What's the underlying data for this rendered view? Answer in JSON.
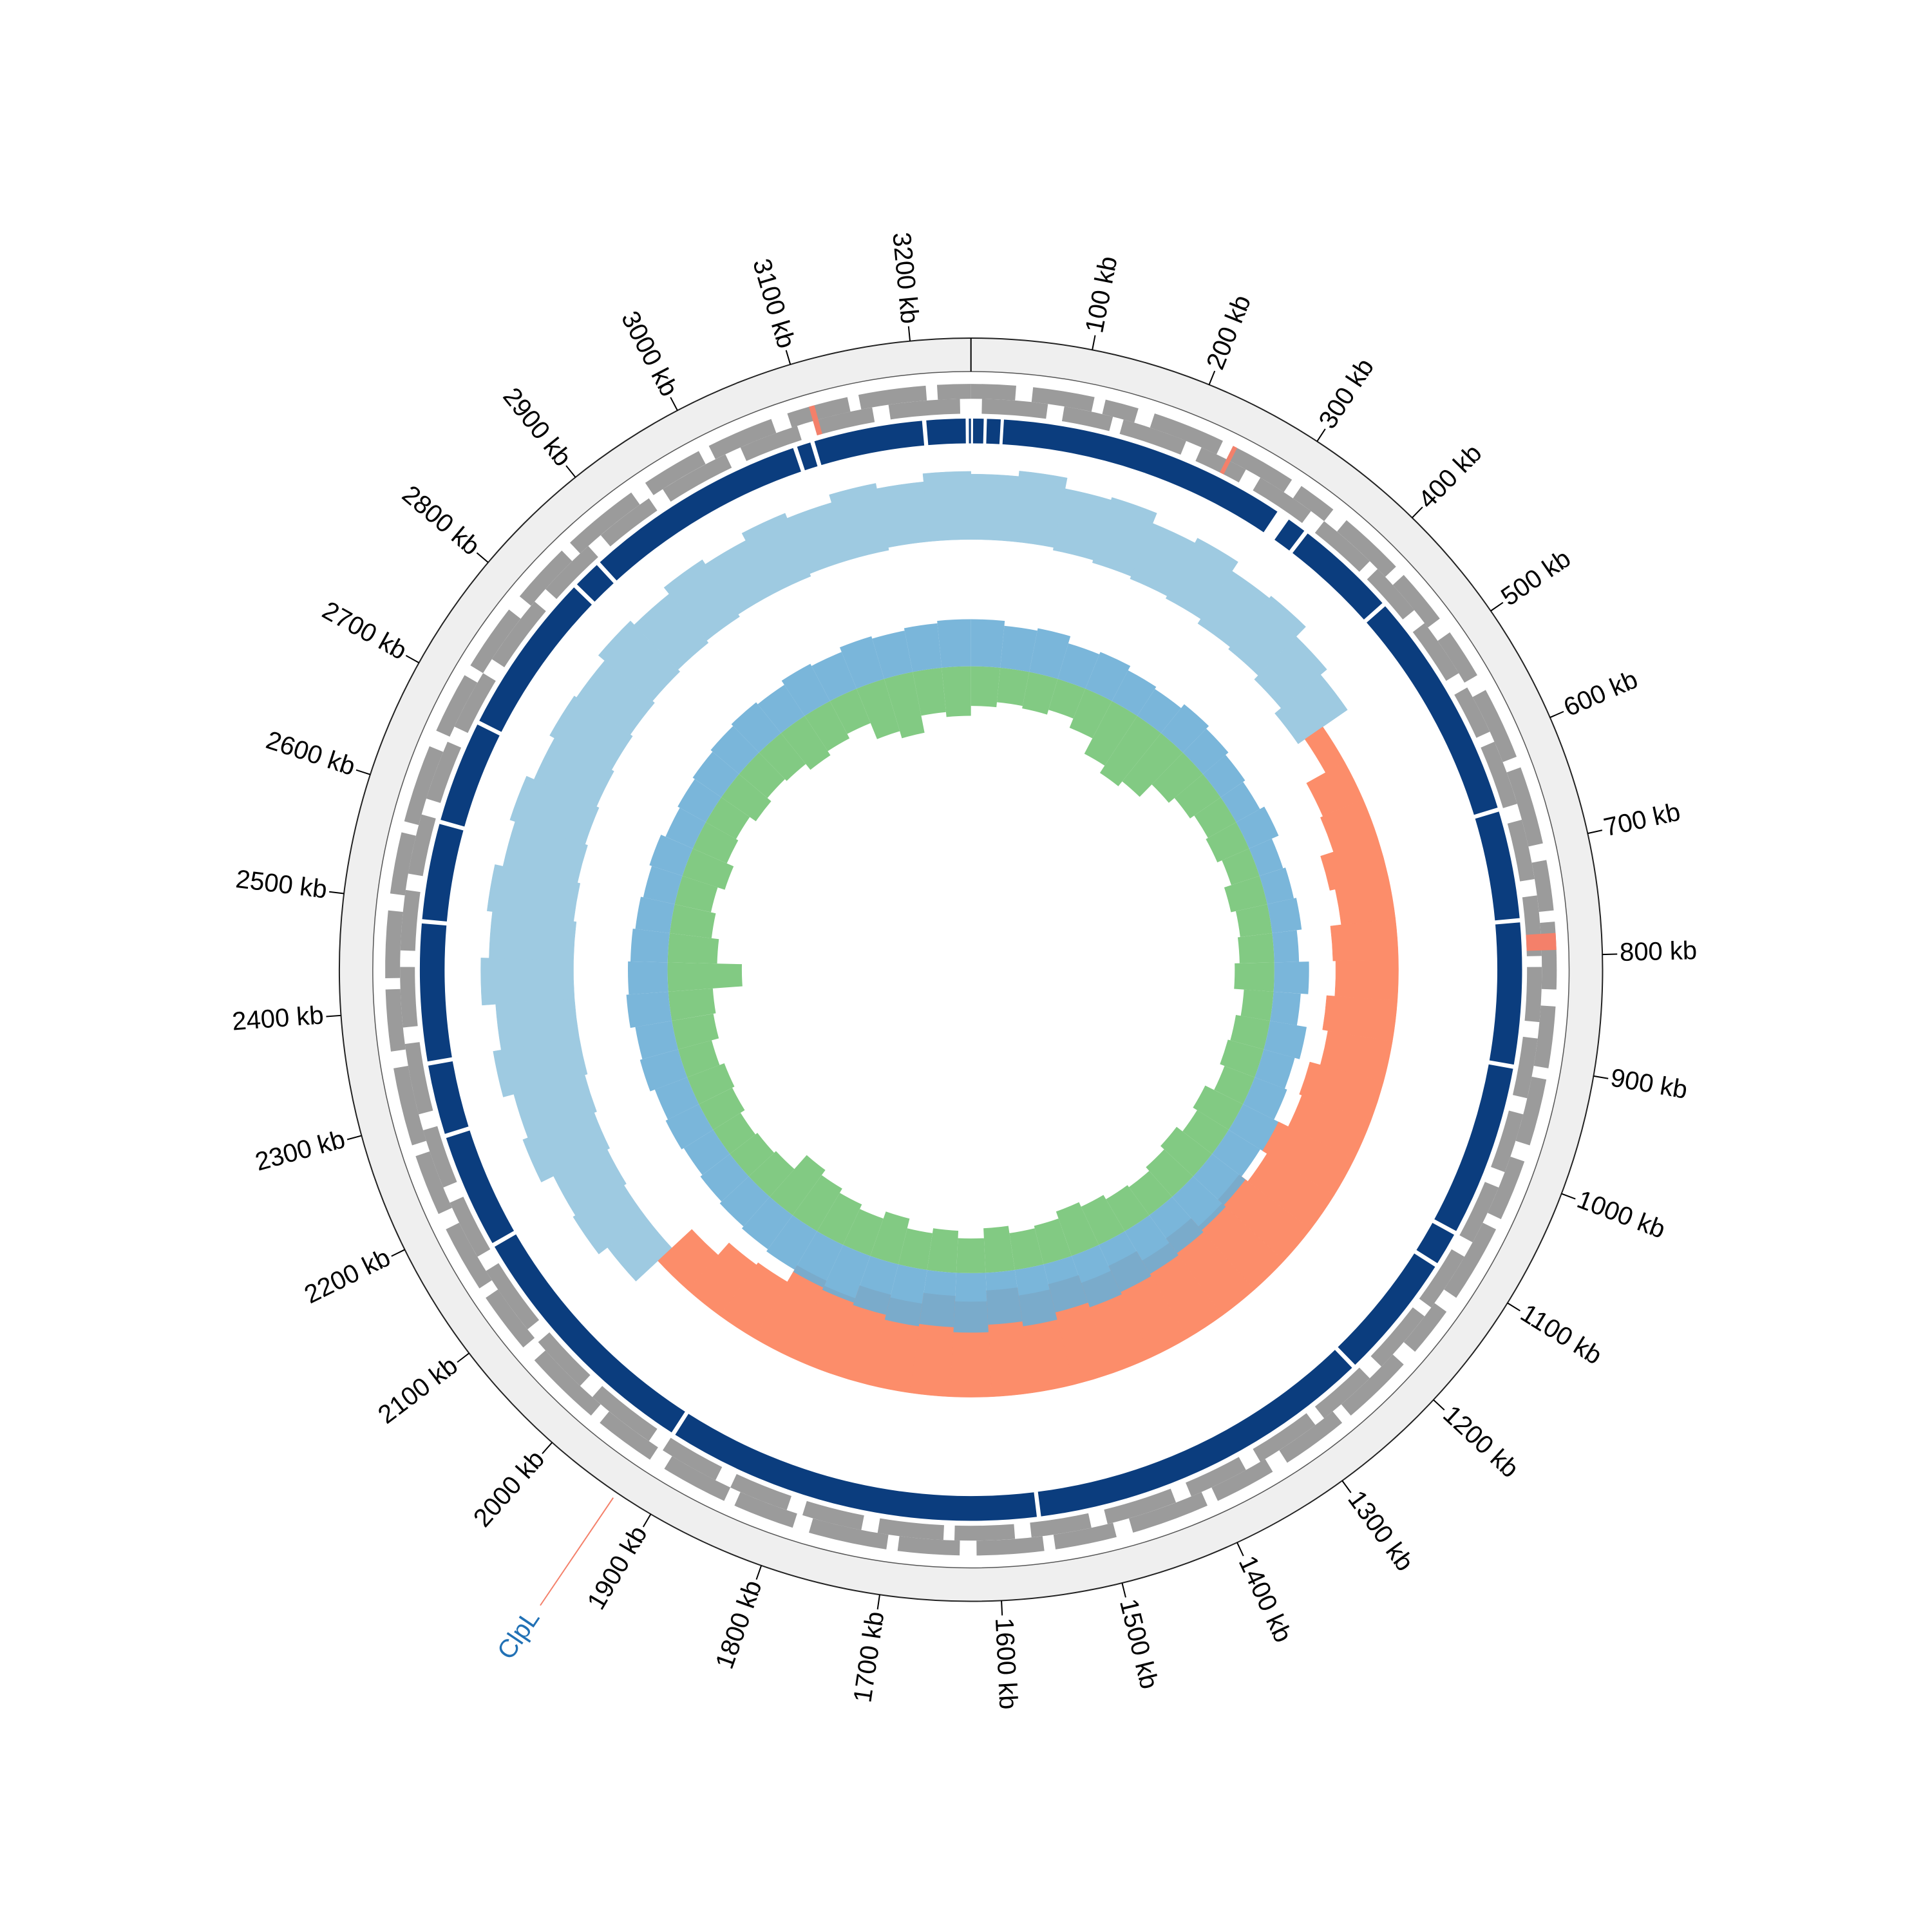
{
  "chart_data": {
    "type": "circular-genome",
    "xlim": [
      0,
      3250
    ],
    "xticks": [
      {
        "value": 100,
        "label": "100 kb"
      },
      {
        "value": 200,
        "label": "200 kb"
      },
      {
        "value": 300,
        "label": "300 kb"
      },
      {
        "value": 400,
        "label": "400 kb"
      },
      {
        "value": 500,
        "label": "500 kb"
      },
      {
        "value": 600,
        "label": "600 kb"
      },
      {
        "value": 700,
        "label": "700 kb"
      },
      {
        "value": 800,
        "label": "800 kb"
      },
      {
        "value": 900,
        "label": "900 kb"
      },
      {
        "value": 1000,
        "label": "1000 kb"
      },
      {
        "value": 1100,
        "label": "1100 kb"
      },
      {
        "value": 1200,
        "label": "1200 kb"
      },
      {
        "value": 1300,
        "label": "1300 kb"
      },
      {
        "value": 1400,
        "label": "1400 kb"
      },
      {
        "value": 1500,
        "label": "1500 kb"
      },
      {
        "value": 1600,
        "label": "1600 kb"
      },
      {
        "value": 1700,
        "label": "1700 kb"
      },
      {
        "value": 1800,
        "label": "1800 kb"
      },
      {
        "value": 1900,
        "label": "1900 kb"
      },
      {
        "value": 2000,
        "label": "2000 kb"
      },
      {
        "value": 2100,
        "label": "2100 kb"
      },
      {
        "value": 2200,
        "label": "2200 kb"
      },
      {
        "value": 2300,
        "label": "2300 kb"
      },
      {
        "value": 2400,
        "label": "2400 kb"
      },
      {
        "value": 2500,
        "label": "2500 kb"
      },
      {
        "value": 2600,
        "label": "2600 kb"
      },
      {
        "value": 2700,
        "label": "2700 kb"
      },
      {
        "value": 2800,
        "label": "2800 kb"
      },
      {
        "value": 2900,
        "label": "2900 kb"
      },
      {
        "value": 3000,
        "label": "3000 kb"
      },
      {
        "value": 3100,
        "label": "3100 kb"
      },
      {
        "value": 3200,
        "label": "3200 kb"
      }
    ],
    "genes": {
      "color": "#9b9b9b",
      "forward": [
        [
          0,
          40
        ],
        [
          55,
          110
        ],
        [
          120,
          150
        ],
        [
          165,
          230
        ],
        [
          240,
          300
        ],
        [
          310,
          345
        ],
        [
          360,
          420
        ],
        [
          430,
          480
        ],
        [
          495,
          540
        ],
        [
          555,
          620
        ],
        [
          630,
          700
        ],
        [
          715,
          760
        ],
        [
          770,
          830
        ],
        [
          845,
          900
        ],
        [
          910,
          970
        ],
        [
          985,
          1040
        ],
        [
          1050,
          1120
        ],
        [
          1135,
          1180
        ],
        [
          1195,
          1260
        ],
        [
          1270,
          1330
        ],
        [
          1345,
          1400
        ],
        [
          1410,
          1480
        ],
        [
          1495,
          1550
        ],
        [
          1560,
          1620
        ],
        [
          1635,
          1690
        ],
        [
          1700,
          1770
        ],
        [
          1785,
          1840
        ],
        [
          1850,
          1910
        ],
        [
          1925,
          1980
        ],
        [
          1990,
          2060
        ],
        [
          2075,
          2130
        ],
        [
          2140,
          2200
        ],
        [
          2215,
          2270
        ],
        [
          2280,
          2350
        ],
        [
          2365,
          2420
        ],
        [
          2430,
          2490
        ],
        [
          2505,
          2560
        ],
        [
          2570,
          2640
        ],
        [
          2655,
          2710
        ],
        [
          2720,
          2780
        ],
        [
          2795,
          2850
        ],
        [
          2860,
          2930
        ],
        [
          2945,
          3000
        ],
        [
          3010,
          3070
        ],
        [
          3085,
          3140
        ],
        [
          3150,
          3210
        ],
        [
          3220,
          3250
        ]
      ],
      "reverse": [
        [
          10,
          70
        ],
        [
          85,
          130
        ],
        [
          140,
          200
        ],
        [
          215,
          260
        ],
        [
          275,
          330
        ],
        [
          345,
          400
        ],
        [
          410,
          460
        ],
        [
          475,
          530
        ],
        [
          545,
          590
        ],
        [
          600,
          660
        ],
        [
          675,
          730
        ],
        [
          745,
          800
        ],
        [
          810,
          860
        ],
        [
          875,
          930
        ],
        [
          945,
          1000
        ],
        [
          1015,
          1070
        ],
        [
          1085,
          1140
        ],
        [
          1150,
          1210
        ],
        [
          1225,
          1280
        ],
        [
          1290,
          1350
        ],
        [
          1365,
          1420
        ],
        [
          1435,
          1500
        ],
        [
          1515,
          1570
        ],
        [
          1585,
          1640
        ],
        [
          1650,
          1710
        ],
        [
          1725,
          1780
        ],
        [
          1795,
          1850
        ],
        [
          1865,
          1920
        ],
        [
          1935,
          2000
        ],
        [
          2015,
          2070
        ],
        [
          2085,
          2150
        ],
        [
          2165,
          2220
        ],
        [
          2235,
          2290
        ],
        [
          2305,
          2370
        ],
        [
          2385,
          2440
        ],
        [
          2455,
          2510
        ],
        [
          2525,
          2580
        ],
        [
          2595,
          2650
        ],
        [
          2665,
          2720
        ],
        [
          2735,
          2800
        ],
        [
          2815,
          2870
        ],
        [
          2885,
          2940
        ],
        [
          2955,
          3020
        ],
        [
          3035,
          3090
        ],
        [
          3105,
          3160
        ],
        [
          3175,
          3240
        ]
      ]
    },
    "highlight_genes": {
      "color": "#f4806a",
      "features": [
        [
          240,
          244
        ],
        [
          780,
          795
        ],
        [
          3105,
          3110
        ]
      ]
    },
    "contigs": {
      "color": "#0b3d7e",
      "segments": [
        [
          2,
          12
        ],
        [
          15,
          28
        ],
        [
          31,
          305
        ],
        [
          318,
          336
        ],
        [
          340,
          436
        ],
        [
          440,
          658
        ],
        [
          662,
          764
        ],
        [
          768,
          902
        ],
        [
          906,
          1068
        ],
        [
          1072,
          1103
        ],
        [
          1107,
          1226
        ],
        [
          1230,
          1559
        ],
        [
          1563,
          1918
        ],
        [
          1922,
          2165
        ],
        [
          2169,
          2277
        ],
        [
          2281,
          2347
        ],
        [
          2351,
          2481
        ],
        [
          2485,
          2576
        ],
        [
          2580,
          2676
        ],
        [
          2680,
          2834
        ],
        [
          2838,
          2864
        ],
        [
          2868,
          3080
        ],
        [
          3084,
          3097
        ],
        [
          3101,
          3204
        ],
        [
          3208,
          3245
        ],
        [
          3248,
          3250
        ]
      ]
    },
    "outer_track": {
      "ylim": [
        0,
        100
      ],
      "x": [
        0,
        50,
        100,
        150,
        200,
        250,
        300,
        350,
        400,
        450,
        500,
        550,
        600,
        650,
        700,
        750,
        800,
        850,
        900,
        950,
        1000,
        1050,
        1100,
        1150,
        1200,
        1250,
        1300,
        1350,
        1400,
        1450,
        1500,
        1550,
        1600,
        1650,
        1700,
        1750,
        1800,
        1850,
        1900,
        1950,
        2000,
        2050,
        2100,
        2150,
        2200,
        2250,
        2300,
        2350,
        2400,
        2450,
        2500,
        2550,
        2600,
        2650,
        2700,
        2750,
        2800,
        2850,
        2900,
        2950,
        3000,
        3050,
        3100,
        3150,
        3200
      ],
      "series": [
        {
          "color": "#9ecae1",
          "lower": [
            67,
            67,
            66,
            65,
            64,
            63,
            61,
            60,
            58,
            55,
            null,
            null,
            null,
            null,
            null,
            null,
            null,
            null,
            null,
            null,
            null,
            null,
            null,
            null,
            null,
            null,
            null,
            null,
            null,
            null,
            null,
            null,
            null,
            null,
            null,
            null,
            null,
            null,
            null,
            null,
            null,
            59,
            59,
            58,
            57,
            56,
            55,
            55,
            55,
            55,
            56,
            57,
            58,
            59,
            60,
            61,
            62,
            63,
            64,
            65,
            65,
            66,
            66,
            67,
            67
          ],
          "upper": [
            91,
            93,
            89,
            90,
            86,
            88,
            84,
            85,
            80,
            77,
            null,
            null,
            null,
            null,
            null,
            null,
            null,
            null,
            null,
            null,
            null,
            null,
            null,
            null,
            null,
            null,
            null,
            null,
            null,
            null,
            null,
            null,
            null,
            null,
            null,
            null,
            null,
            null,
            null,
            null,
            null,
            77,
            81,
            80,
            85,
            83,
            87,
            84,
            89,
            86,
            88,
            85,
            87,
            84,
            86,
            85,
            88,
            86,
            89,
            87,
            90,
            88,
            91,
            89,
            92
          ]
        },
        {
          "color": "#fc8d6a",
          "lower": [
            null,
            null,
            null,
            null,
            null,
            null,
            null,
            null,
            null,
            null,
            58,
            50,
            49,
            44,
            46,
            42,
            43,
            40,
            42,
            38,
            39,
            35,
            37,
            33,
            35,
            31,
            33,
            29,
            31,
            28,
            30,
            27,
            31,
            29,
            33,
            32,
            37,
            35,
            42,
            43,
            49,
            null,
            null,
            null,
            null,
            null,
            null,
            null,
            null,
            null,
            null,
            null,
            null,
            null,
            null,
            null,
            null,
            null,
            null,
            null,
            null,
            null,
            null,
            null,
            null
          ],
          "upper": [
            null,
            null,
            null,
            null,
            null,
            null,
            null,
            null,
            null,
            null,
            66,
            66,
            66,
            66,
            66,
            66,
            66,
            66,
            66,
            66,
            66,
            66,
            66,
            66,
            66,
            66,
            66,
            66,
            66,
            66,
            66,
            66,
            66,
            66,
            66,
            66,
            66,
            66,
            66,
            66,
            66,
            null,
            null,
            null,
            null,
            null,
            null,
            null,
            null,
            null,
            null,
            null,
            null,
            null,
            null,
            null,
            null,
            null,
            null,
            null,
            null,
            null,
            null,
            null,
            null
          ]
        }
      ]
    },
    "inner_track": {
      "ylim": [
        -100,
        60
      ],
      "x": [
        0,
        50,
        100,
        150,
        200,
        250,
        300,
        350,
        400,
        450,
        500,
        550,
        600,
        650,
        700,
        750,
        800,
        850,
        900,
        950,
        1000,
        1050,
        1100,
        1150,
        1200,
        1250,
        1300,
        1350,
        1400,
        1450,
        1500,
        1550,
        1600,
        1650,
        1700,
        1750,
        1800,
        1850,
        1900,
        1950,
        2000,
        2050,
        2100,
        2150,
        2200,
        2250,
        2300,
        2350,
        2400,
        2450,
        2500,
        2550,
        2600,
        2650,
        2700,
        2750,
        2800,
        2850,
        2900,
        2950,
        3000,
        3050,
        3100,
        3150,
        3200
      ],
      "series": [
        {
          "color": "#74c476",
          "values": [
            -32,
            -28,
            -30,
            -26,
            -34,
            -48,
            -55,
            -50,
            -36,
            -30,
            -26,
            -28,
            -24,
            -30,
            -26,
            -28,
            -32,
            -24,
            -28,
            -30,
            -26,
            -34,
            -30,
            -36,
            -32,
            -28,
            -30,
            -34,
            -38,
            -32,
            -30,
            -36,
            -28,
            -34,
            -30,
            -38,
            -32,
            -36,
            -40,
            -45,
            -30,
            -28,
            -26,
            -30,
            -32,
            -28,
            -34,
            -36,
            -60,
            -40,
            -34,
            -30,
            -36,
            -30,
            -28,
            -34,
            -30,
            -32,
            -38,
            -34,
            -30,
            -44,
            -50,
            -36,
            -40
          ]
        },
        {
          "color": "#6baed6",
          "values": [
            38,
            34,
            36,
            30,
            32,
            28,
            26,
            30,
            27,
            24,
            22,
            26,
            20,
            22,
            24,
            20,
            28,
            22,
            30,
            26,
            28,
            32,
            30,
            34,
            36,
            38,
            40,
            42,
            44,
            40,
            46,
            42,
            48,
            44,
            46,
            42,
            40,
            38,
            36,
            34,
            32,
            30,
            28,
            30,
            28,
            32,
            30,
            34,
            32,
            30,
            28,
            26,
            28,
            24,
            26,
            28,
            30,
            32,
            30,
            34,
            32,
            36,
            34,
            36,
            38
          ]
        }
      ]
    },
    "annotations": [
      {
        "text": "ClpL",
        "position": 1933,
        "color": "#2171b5",
        "line_color": "#f4806a"
      }
    ]
  }
}
